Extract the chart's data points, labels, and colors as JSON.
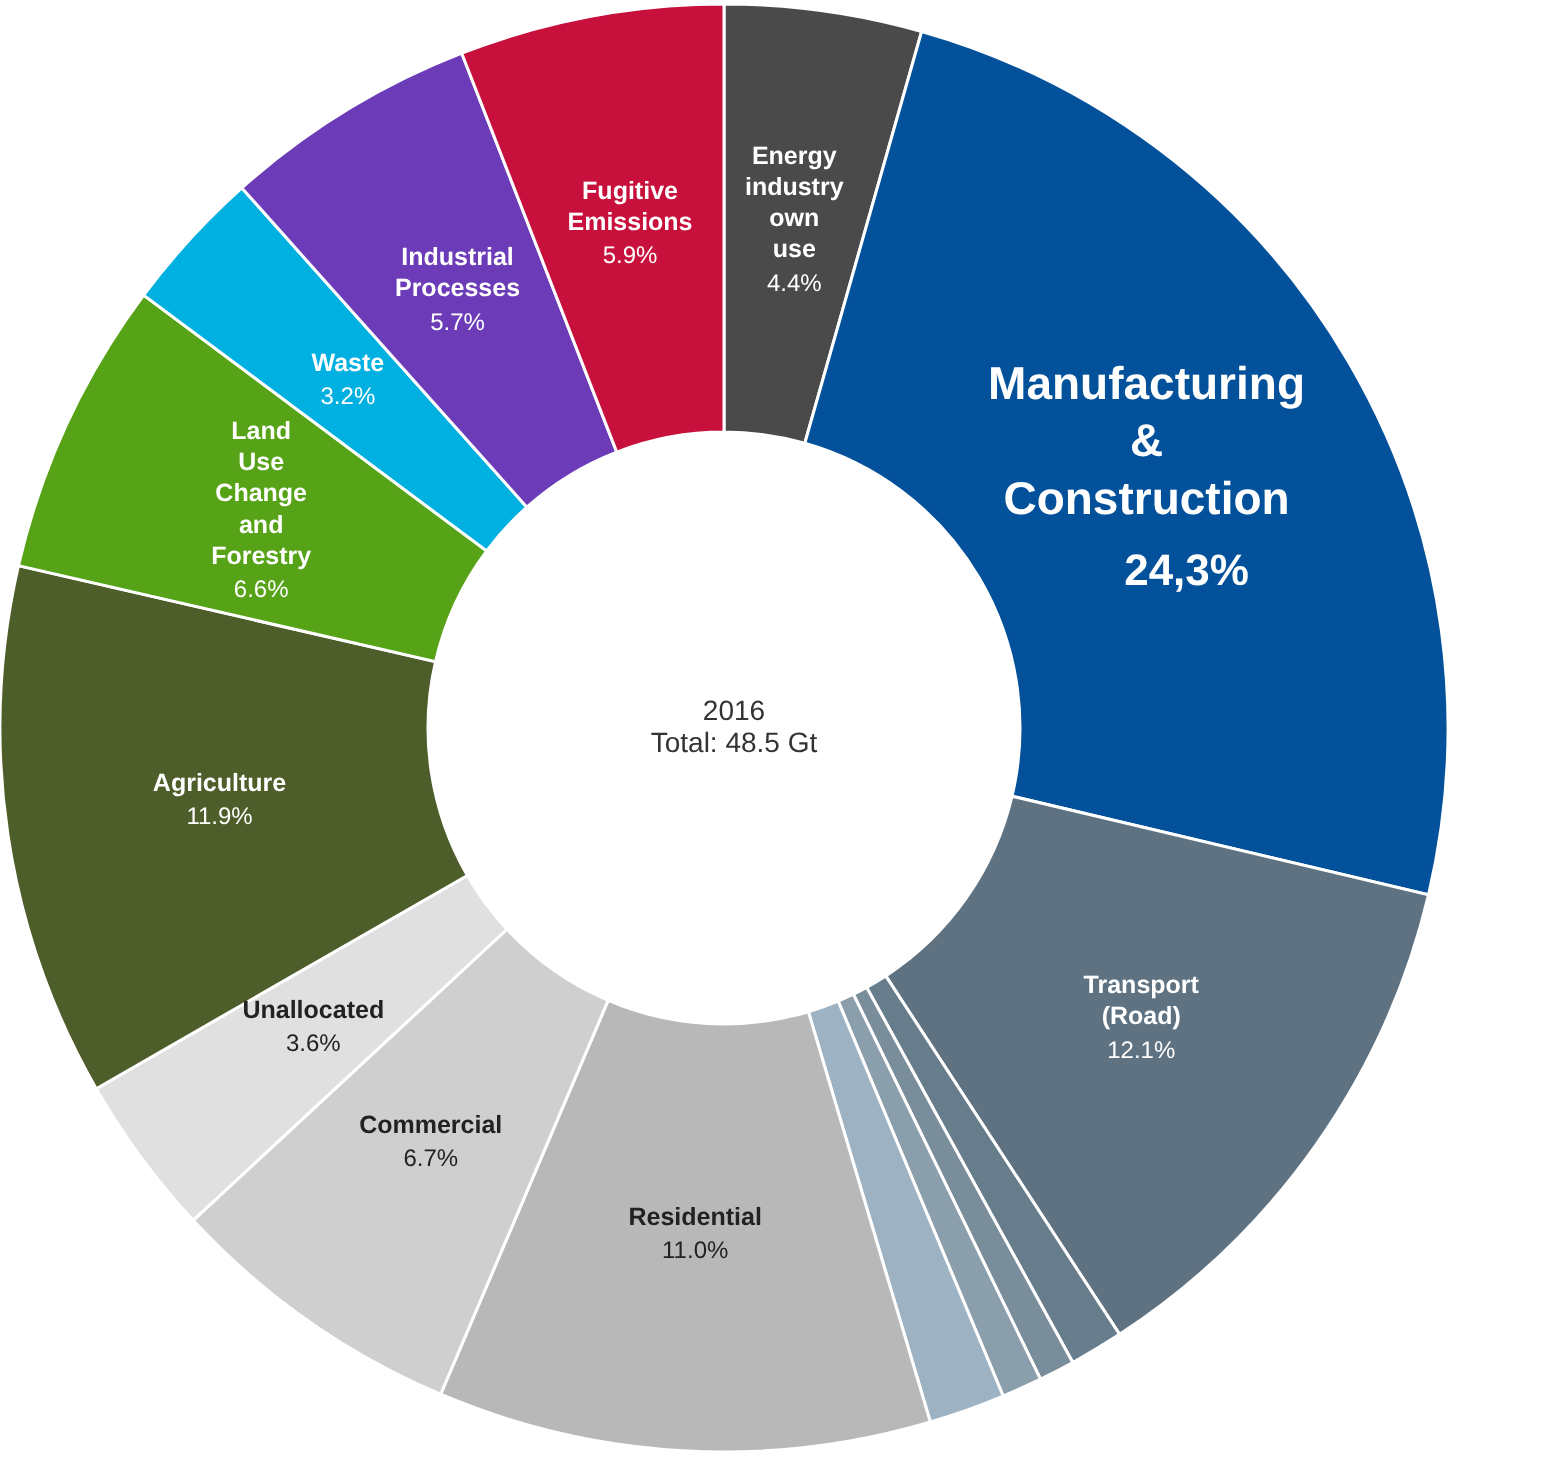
{
  "chart_data": {
    "type": "donut",
    "categories": [
      "Energy industry own use",
      "Manufacturing & Construction",
      "Transport (Road)",
      null,
      null,
      null,
      null,
      "Residential",
      "Commercial",
      "Unallocated",
      "Agriculture",
      "Land Use Change and Forestry",
      "Waste",
      "Industrial Processes",
      "Fugitive Emissions"
    ],
    "values": [
      4.4,
      24.3,
      12.1,
      1.2,
      0.8,
      0.9,
      1.7,
      11.0,
      6.7,
      3.6,
      11.9,
      6.6,
      3.2,
      5.7,
      5.9
    ],
    "value_labels": [
      "4.4%",
      "24,3%",
      "12.1%",
      null,
      null,
      null,
      null,
      "11.0%",
      "6.7%",
      "3.6%",
      "11.9%",
      "6.6%",
      "3.2%",
      "5.7%",
      "5.9%"
    ],
    "colors": [
      "#4a4a4a",
      "#02519a",
      "#5f7282",
      "#687d8c",
      "#7a8d9b",
      "#8b9eac",
      "#9db2c2",
      "#b8b8b8",
      "#cfcfcf",
      "#e0e0e0",
      "#4e5e2a",
      "#56a318",
      "#00b0e0",
      "#6c3cb8",
      "#c8103c"
    ],
    "annotations": [
      "2016",
      "Total: 48.5 Gt"
    ]
  }
}
